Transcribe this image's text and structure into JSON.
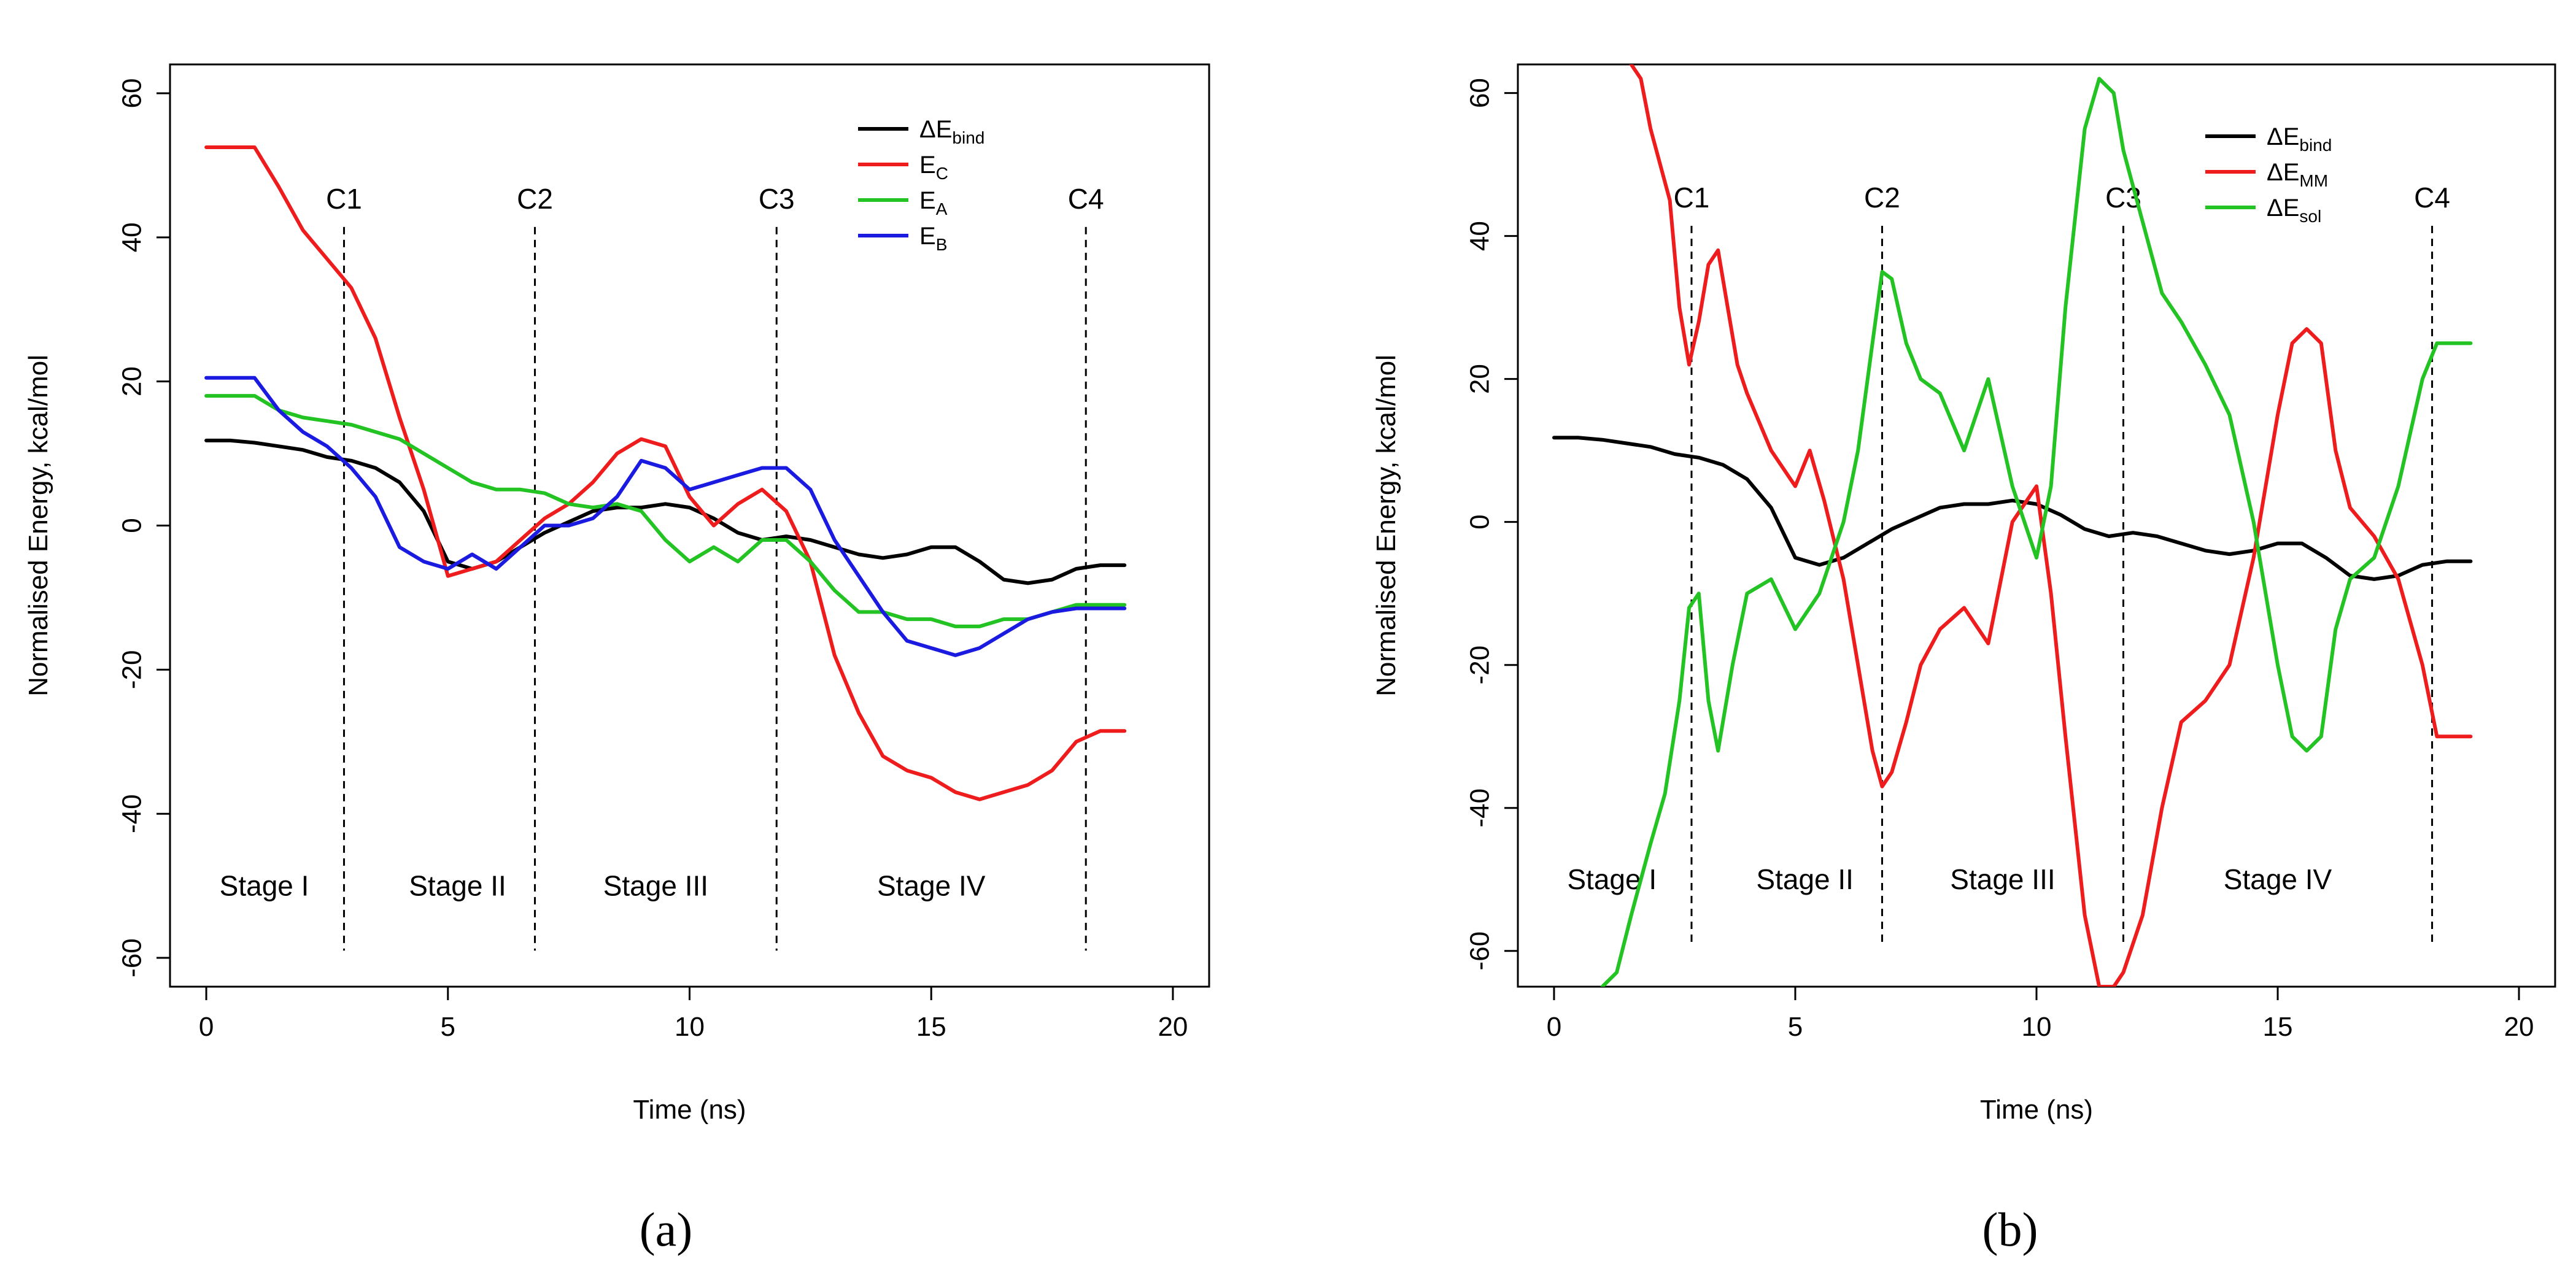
{
  "chart_data": [
    {
      "type": "line",
      "caption": "(a)",
      "xlabel": "Time (ns)",
      "ylabel": "Normalised Energy, kcal/mol",
      "xlim": [
        -0.75,
        20.75
      ],
      "ylim": [
        -64,
        64
      ],
      "xticks": [
        "0",
        "5",
        "10",
        "15",
        "20"
      ],
      "yticks": [
        "-60",
        "-40",
        "-20",
        "0",
        "20",
        "40",
        "60"
      ],
      "grid": false,
      "legend_position": "top-right",
      "legend": [
        {
          "prefix": "ΔE",
          "sub": "bind",
          "color": "#000000"
        },
        {
          "prefix": "E",
          "sub": "C",
          "color": "#ee1c1c"
        },
        {
          "prefix": "E",
          "sub": "A",
          "color": "#22c322"
        },
        {
          "prefix": "E",
          "sub": "B",
          "color": "#1a1ae0"
        }
      ],
      "checkpoints": [
        {
          "label": "C1",
          "x": 2.85
        },
        {
          "label": "C2",
          "x": 6.8
        },
        {
          "label": "C3",
          "x": 11.8
        },
        {
          "label": "C4",
          "x": 18.2
        }
      ],
      "stages": [
        {
          "label": "Stage I",
          "x": 1.2
        },
        {
          "label": "Stage II",
          "x": 5.2
        },
        {
          "label": "Stage III",
          "x": 9.3
        },
        {
          "label": "Stage IV",
          "x": 15.0
        }
      ],
      "checkpoint_label_y": 44,
      "stage_label_y": -50,
      "series": [
        {
          "name": "dE_bind",
          "color": "#000000",
          "x": [
            0,
            0.5,
            1,
            1.5,
            2,
            2.5,
            3,
            3.5,
            4,
            4.5,
            5,
            5.5,
            6,
            6.5,
            7,
            7.5,
            8,
            8.5,
            9,
            9.5,
            10,
            10.5,
            11,
            11.5,
            12,
            12.5,
            13,
            13.5,
            14,
            14.5,
            15,
            15.5,
            16,
            16.5,
            17,
            17.5,
            18,
            18.5,
            19
          ],
          "y": [
            11.8,
            11.8,
            11.5,
            11,
            10.5,
            9.5,
            9,
            8,
            6,
            2,
            -5,
            -6,
            -5,
            -3,
            -1,
            0.5,
            2,
            2.5,
            2.5,
            3,
            2.5,
            1,
            -1,
            -2,
            -1.5,
            -2,
            -3,
            -4,
            -4.5,
            -4,
            -3,
            -3,
            -5,
            -7.5,
            -8,
            -7.5,
            -6,
            -5.5,
            -5.5
          ]
        },
        {
          "name": "E_C",
          "color": "#ee1c1c",
          "x": [
            0,
            0.5,
            1,
            1.5,
            2,
            2.5,
            3,
            3.5,
            4,
            4.5,
            5,
            5.5,
            6,
            6.5,
            7,
            7.5,
            8,
            8.5,
            9,
            9.5,
            10,
            10.5,
            11,
            11.5,
            12,
            12.5,
            13,
            13.5,
            14,
            14.5,
            15,
            15.5,
            16,
            16.5,
            17,
            17.5,
            18,
            18.5,
            19
          ],
          "y": [
            52.5,
            52.5,
            52.5,
            47,
            41,
            37,
            33,
            26,
            15,
            5,
            -7,
            -6,
            -5,
            -2,
            1,
            3,
            6,
            10,
            12,
            11,
            4,
            0,
            3,
            5,
            2,
            -5,
            -18,
            -26,
            -32,
            -34,
            -35,
            -37,
            -38,
            -37,
            -36,
            -34,
            -30,
            -28.5,
            -28.5
          ]
        },
        {
          "name": "E_A",
          "color": "#22c322",
          "x": [
            0,
            0.5,
            1,
            1.5,
            2,
            2.5,
            3,
            3.5,
            4,
            4.5,
            5,
            5.5,
            6,
            6.5,
            7,
            7.5,
            8,
            8.5,
            9,
            9.5,
            10,
            10.5,
            11,
            11.5,
            12,
            12.5,
            13,
            13.5,
            14,
            14.5,
            15,
            15.5,
            16,
            16.5,
            17,
            17.5,
            18,
            18.5,
            19
          ],
          "y": [
            18,
            18,
            18,
            16,
            15,
            14.5,
            14,
            13,
            12,
            10,
            8,
            6,
            5,
            5,
            4.5,
            3,
            2.5,
            3,
            2,
            -2,
            -5,
            -3,
            -5,
            -2,
            -2,
            -5,
            -9,
            -12,
            -12,
            -13,
            -13,
            -14,
            -14,
            -13,
            -13,
            -12,
            -11,
            -11,
            -11
          ]
        },
        {
          "name": "E_B",
          "color": "#1a1ae0",
          "x": [
            0,
            0.5,
            1,
            1.5,
            2,
            2.5,
            3,
            3.5,
            4,
            4.5,
            5,
            5.5,
            6,
            6.5,
            7,
            7.5,
            8,
            8.5,
            9,
            9.5,
            10,
            10.5,
            11,
            11.5,
            12,
            12.5,
            13,
            13.5,
            14,
            14.5,
            15,
            15.5,
            16,
            16.5,
            17,
            17.5,
            18,
            18.5,
            19
          ],
          "y": [
            20.5,
            20.5,
            20.5,
            16,
            13,
            11,
            8,
            4,
            -3,
            -5,
            -6,
            -4,
            -6,
            -3,
            0,
            0,
            1,
            4,
            9,
            8,
            5,
            6,
            7,
            8,
            8,
            5,
            -2,
            -7,
            -12,
            -16,
            -17,
            -18,
            -17,
            -15,
            -13,
            -12,
            -11.5,
            -11.5,
            -11.5
          ]
        }
      ]
    },
    {
      "type": "line",
      "caption": "(b)",
      "xlabel": "Time (ns)",
      "ylabel": "Normalised Energy, kcal/mol",
      "xlim": [
        -0.75,
        20.75
      ],
      "ylim": [
        -65,
        64
      ],
      "xticks": [
        "0",
        "5",
        "10",
        "15",
        "20"
      ],
      "yticks": [
        "-60",
        "-40",
        "-20",
        "0",
        "20",
        "40",
        "60"
      ],
      "grid": false,
      "legend_position": "top-right",
      "legend": [
        {
          "prefix": "ΔE",
          "sub": "bind",
          "color": "#000000"
        },
        {
          "prefix": "ΔE",
          "sub": "MM",
          "color": "#ee1c1c"
        },
        {
          "prefix": "ΔE",
          "sub": "sol",
          "color": "#22c322"
        }
      ],
      "checkpoints": [
        {
          "label": "C1",
          "x": 2.85
        },
        {
          "label": "C2",
          "x": 6.8
        },
        {
          "label": "C3",
          "x": 11.8
        },
        {
          "label": "C4",
          "x": 18.2
        }
      ],
      "stages": [
        {
          "label": "Stage I",
          "x": 1.2
        },
        {
          "label": "Stage II",
          "x": 5.2
        },
        {
          "label": "Stage III",
          "x": 9.3
        },
        {
          "label": "Stage IV",
          "x": 15.0
        }
      ],
      "checkpoint_label_y": 44,
      "stage_label_y": -50,
      "series": [
        {
          "name": "dE_bind",
          "color": "#000000",
          "x": [
            0,
            0.5,
            1,
            1.5,
            2,
            2.5,
            3,
            3.5,
            4,
            4.5,
            5,
            5.5,
            6,
            6.5,
            7,
            7.5,
            8,
            8.5,
            9,
            9.5,
            10,
            10.5,
            11,
            11.5,
            12,
            12.5,
            13,
            13.5,
            14,
            14.5,
            15,
            15.5,
            16,
            16.5,
            17,
            17.5,
            18,
            18.5,
            19
          ],
          "y": [
            11.8,
            11.8,
            11.5,
            11,
            10.5,
            9.5,
            9,
            8,
            6,
            2,
            -5,
            -6,
            -5,
            -3,
            -1,
            0.5,
            2,
            2.5,
            2.5,
            3,
            2.5,
            1,
            -1,
            -2,
            -1.5,
            -2,
            -3,
            -4,
            -4.5,
            -4,
            -3,
            -3,
            -5,
            -7.5,
            -8,
            -7.5,
            -6,
            -5.5,
            -5.5
          ]
        },
        {
          "name": "dE_MM",
          "color": "#ee1c1c",
          "x": [
            1.6,
            1.8,
            2,
            2.2,
            2.4,
            2.6,
            2.8,
            3,
            3.2,
            3.4,
            3.6,
            3.8,
            4.0,
            4.5,
            5.0,
            5.3,
            5.6,
            6.0,
            6.3,
            6.6,
            6.8,
            7.0,
            7.3,
            7.6,
            8.0,
            8.5,
            9.0,
            9.5,
            10.0,
            10.3,
            10.6,
            11.0,
            11.3,
            11.6,
            11.8,
            12.2,
            12.6,
            13.0,
            13.5,
            14.0,
            14.5,
            15.0,
            15.3,
            15.6,
            15.9,
            16.2,
            16.5,
            17.0,
            17.5,
            18.0,
            18.3,
            18.6,
            19
          ],
          "y": [
            64,
            62,
            55,
            50,
            45,
            30,
            22,
            28,
            36,
            38,
            30,
            22,
            18,
            10,
            5,
            10,
            3,
            -8,
            -20,
            -32,
            -37,
            -35,
            -28,
            -20,
            -15,
            -12,
            -17,
            0,
            5,
            -10,
            -30,
            -55,
            -65,
            -65,
            -63,
            -55,
            -40,
            -28,
            -25,
            -20,
            -5,
            15,
            25,
            27,
            25,
            10,
            2,
            -2,
            -8,
            -20,
            -30,
            -30,
            -30
          ]
        },
        {
          "name": "dE_sol",
          "color": "#22c322",
          "x": [
            1,
            1.3,
            1.6,
            2,
            2.3,
            2.6,
            2.8,
            3.0,
            3.2,
            3.4,
            3.7,
            4.0,
            4.5,
            5.0,
            5.5,
            6.0,
            6.3,
            6.6,
            6.8,
            7.0,
            7.3,
            7.6,
            8.0,
            8.5,
            9.0,
            9.5,
            10.0,
            10.3,
            10.6,
            11.0,
            11.3,
            11.6,
            11.8,
            12.2,
            12.6,
            13.0,
            13.5,
            14.0,
            14.5,
            15.0,
            15.3,
            15.6,
            15.9,
            16.2,
            16.5,
            17.0,
            17.5,
            18.0,
            18.3,
            18.6,
            19
          ],
          "y": [
            -65,
            -63,
            -55,
            -45,
            -38,
            -25,
            -12,
            -10,
            -25,
            -32,
            -20,
            -10,
            -8,
            -15,
            -10,
            0,
            10,
            25,
            35,
            34,
            25,
            20,
            18,
            10,
            20,
            5,
            -5,
            5,
            30,
            55,
            62,
            60,
            52,
            42,
            32,
            28,
            22,
            15,
            0,
            -20,
            -30,
            -32,
            -30,
            -15,
            -8,
            -5,
            5,
            20,
            25,
            25,
            25
          ]
        }
      ]
    }
  ]
}
